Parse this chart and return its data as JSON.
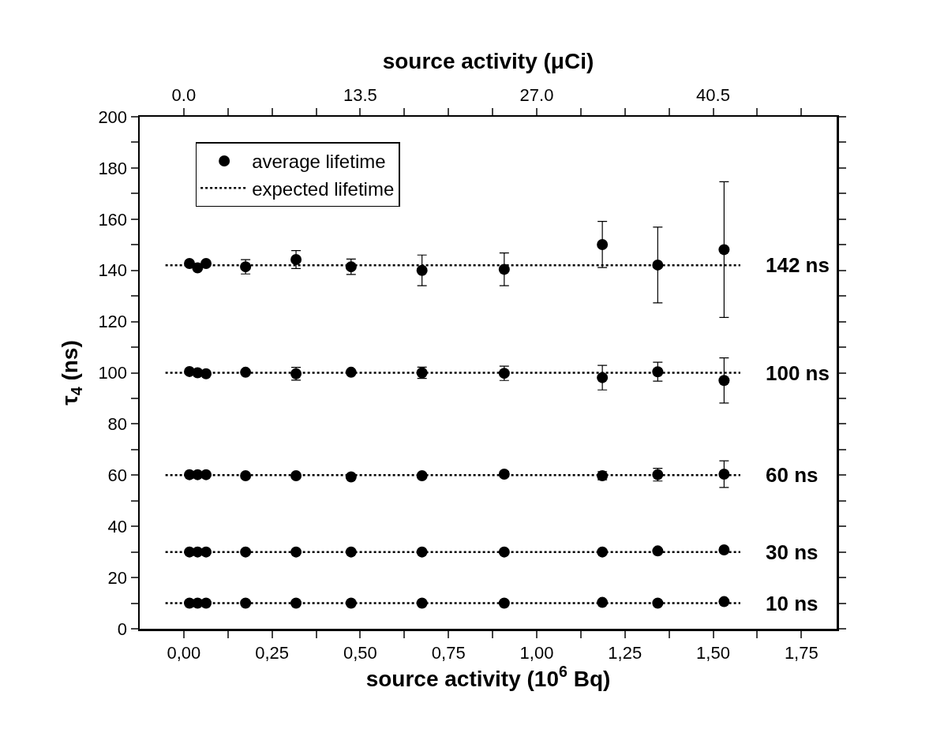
{
  "chart_data": {
    "type": "scatter",
    "xlabel": "source activity (10$^{6}$ Bq)",
    "x2label": "source activity (μCi)",
    "ylabel": "τ$_{4}$ (ns)",
    "xlim": [
      -0.125,
      1.85
    ],
    "xticks": [
      {
        "value": 0,
        "label": "0,00"
      },
      {
        "value": 0.125,
        "label": null
      },
      {
        "value": 0.25,
        "label": "0,25"
      },
      {
        "value": 0.375,
        "label": null
      },
      {
        "value": 0.5,
        "label": "0,50"
      },
      {
        "value": 0.625,
        "label": null
      },
      {
        "value": 0.75,
        "label": "0,75"
      },
      {
        "value": 0.875,
        "label": null
      },
      {
        "value": 1,
        "label": "1,00"
      },
      {
        "value": 1.125,
        "label": null
      },
      {
        "value": 1.25,
        "label": "1,25"
      },
      {
        "value": 1.375,
        "label": null
      },
      {
        "value": 1.5,
        "label": "1,50"
      },
      {
        "value": 1.625,
        "label": null
      },
      {
        "value": 1.75,
        "label": "1,75"
      }
    ],
    "x2lim": [
      -3.375,
      49.95
    ],
    "x2ticks": [
      {
        "value": 0,
        "label": "0.0"
      },
      {
        "value": 3.375,
        "label": null
      },
      {
        "value": 6.75,
        "label": null
      },
      {
        "value": 10.125,
        "label": null
      },
      {
        "value": 13.5,
        "label": "13.5"
      },
      {
        "value": 16.875,
        "label": null
      },
      {
        "value": 20.25,
        "label": null
      },
      {
        "value": 23.625,
        "label": null
      },
      {
        "value": 27,
        "label": "27.0"
      },
      {
        "value": 30.375,
        "label": null
      },
      {
        "value": 33.75,
        "label": null
      },
      {
        "value": 37.125,
        "label": null
      },
      {
        "value": 40.5,
        "label": "40.5"
      },
      {
        "value": 43.875,
        "label": null
      },
      {
        "value": 47.25,
        "label": null
      }
    ],
    "ylim": [
      0,
      200
    ],
    "yticks": [
      0,
      {
        "value": 10,
        "label": null
      },
      20,
      {
        "value": 30,
        "label": null
      },
      40,
      {
        "value": 50,
        "label": null
      },
      60,
      {
        "value": 70,
        "label": null
      },
      80,
      {
        "value": 90,
        "label": null
      },
      100,
      {
        "value": 110,
        "label": null
      },
      120,
      {
        "value": 130,
        "label": null
      },
      140,
      {
        "value": 150,
        "label": null
      },
      160,
      {
        "value": 170,
        "label": null
      },
      180,
      {
        "value": 190,
        "label": null
      },
      200
    ],
    "grid": false,
    "legend": "top left",
    "marker": "circle",
    "series": [
      {
        "name": "average lifetime",
        "color": "#000000",
        "x": [
          0.016,
          0.039,
          0.063,
          0.175,
          0.318,
          0.474,
          0.675,
          0.908,
          1.186,
          1.343,
          1.531,
          0.016,
          0.039,
          0.063,
          0.175,
          0.318,
          0.474,
          0.675,
          0.908,
          1.186,
          1.343,
          1.531,
          0.016,
          0.039,
          0.063,
          0.175,
          0.318,
          0.474,
          0.675,
          0.908,
          1.186,
          1.343,
          1.531,
          0.016,
          0.039,
          0.063,
          0.175,
          0.318,
          0.474,
          0.675,
          0.908,
          1.186,
          1.343,
          1.531,
          0.016,
          0.039,
          0.063,
          0.175,
          0.318,
          0.474,
          0.675,
          0.908,
          1.186,
          1.343,
          1.531
        ],
        "values": [
          142.7,
          141.0,
          142.7,
          141.4,
          144.2,
          141.4,
          140.0,
          140.4,
          150.1,
          142.1,
          148.1,
          100.5,
          100,
          99.6,
          100.2,
          99.6,
          100.2,
          100,
          99.8,
          98.1,
          100.4,
          97,
          60.2,
          60.2,
          60.2,
          59.8,
          59.8,
          59.3,
          59.8,
          60.4,
          59.8,
          60.2,
          60.4,
          30,
          30,
          30,
          30,
          30,
          30,
          30,
          30,
          30,
          30.4,
          30.8,
          10,
          10,
          10,
          10,
          10,
          10,
          10,
          10,
          10.3,
          10,
          10.6
        ],
        "errors": [
          null,
          null,
          null,
          2.8,
          3.5,
          3,
          6,
          6.4,
          9,
          14.8,
          26.5,
          null,
          null,
          null,
          null,
          2.5,
          null,
          2.2,
          2.8,
          4.8,
          3.7,
          8.8,
          null,
          null,
          null,
          null,
          null,
          null,
          null,
          1,
          1.6,
          2.5,
          5.2,
          null,
          null,
          null,
          null,
          null,
          null,
          null,
          null,
          null,
          null,
          null,
          null,
          null,
          null,
          null,
          null,
          null,
          null,
          null,
          null,
          null,
          null
        ]
      },
      {
        "name": "expected lifetime",
        "type": "line",
        "color": "#000000",
        "line_style": "dotted",
        "marker": "none",
        "x": [
          -0.052,
          1.577
        ],
        "values": [
          142,
          142
        ]
      },
      {
        "type": "line",
        "color": "#000000",
        "line_style": "dotted",
        "marker": "none",
        "x": [
          -0.052,
          1.577
        ],
        "values": [
          100,
          100
        ]
      },
      {
        "type": "line",
        "color": "#000000",
        "line_style": "dotted",
        "marker": "none",
        "x": [
          -0.052,
          1.577
        ],
        "values": [
          60,
          60
        ]
      },
      {
        "type": "line",
        "color": "#000000",
        "line_style": "dotted",
        "marker": "none",
        "x": [
          -0.052,
          1.577
        ],
        "values": [
          30,
          30
        ]
      },
      {
        "type": "line",
        "color": "#000000",
        "line_style": "dotted",
        "marker": "none",
        "x": [
          -0.052,
          1.577
        ],
        "values": [
          10,
          10
        ]
      }
    ],
    "annotations": [
      "142 ns",
      "100 ns",
      "60 ns",
      "30 ns",
      "10 ns"
    ]
  }
}
